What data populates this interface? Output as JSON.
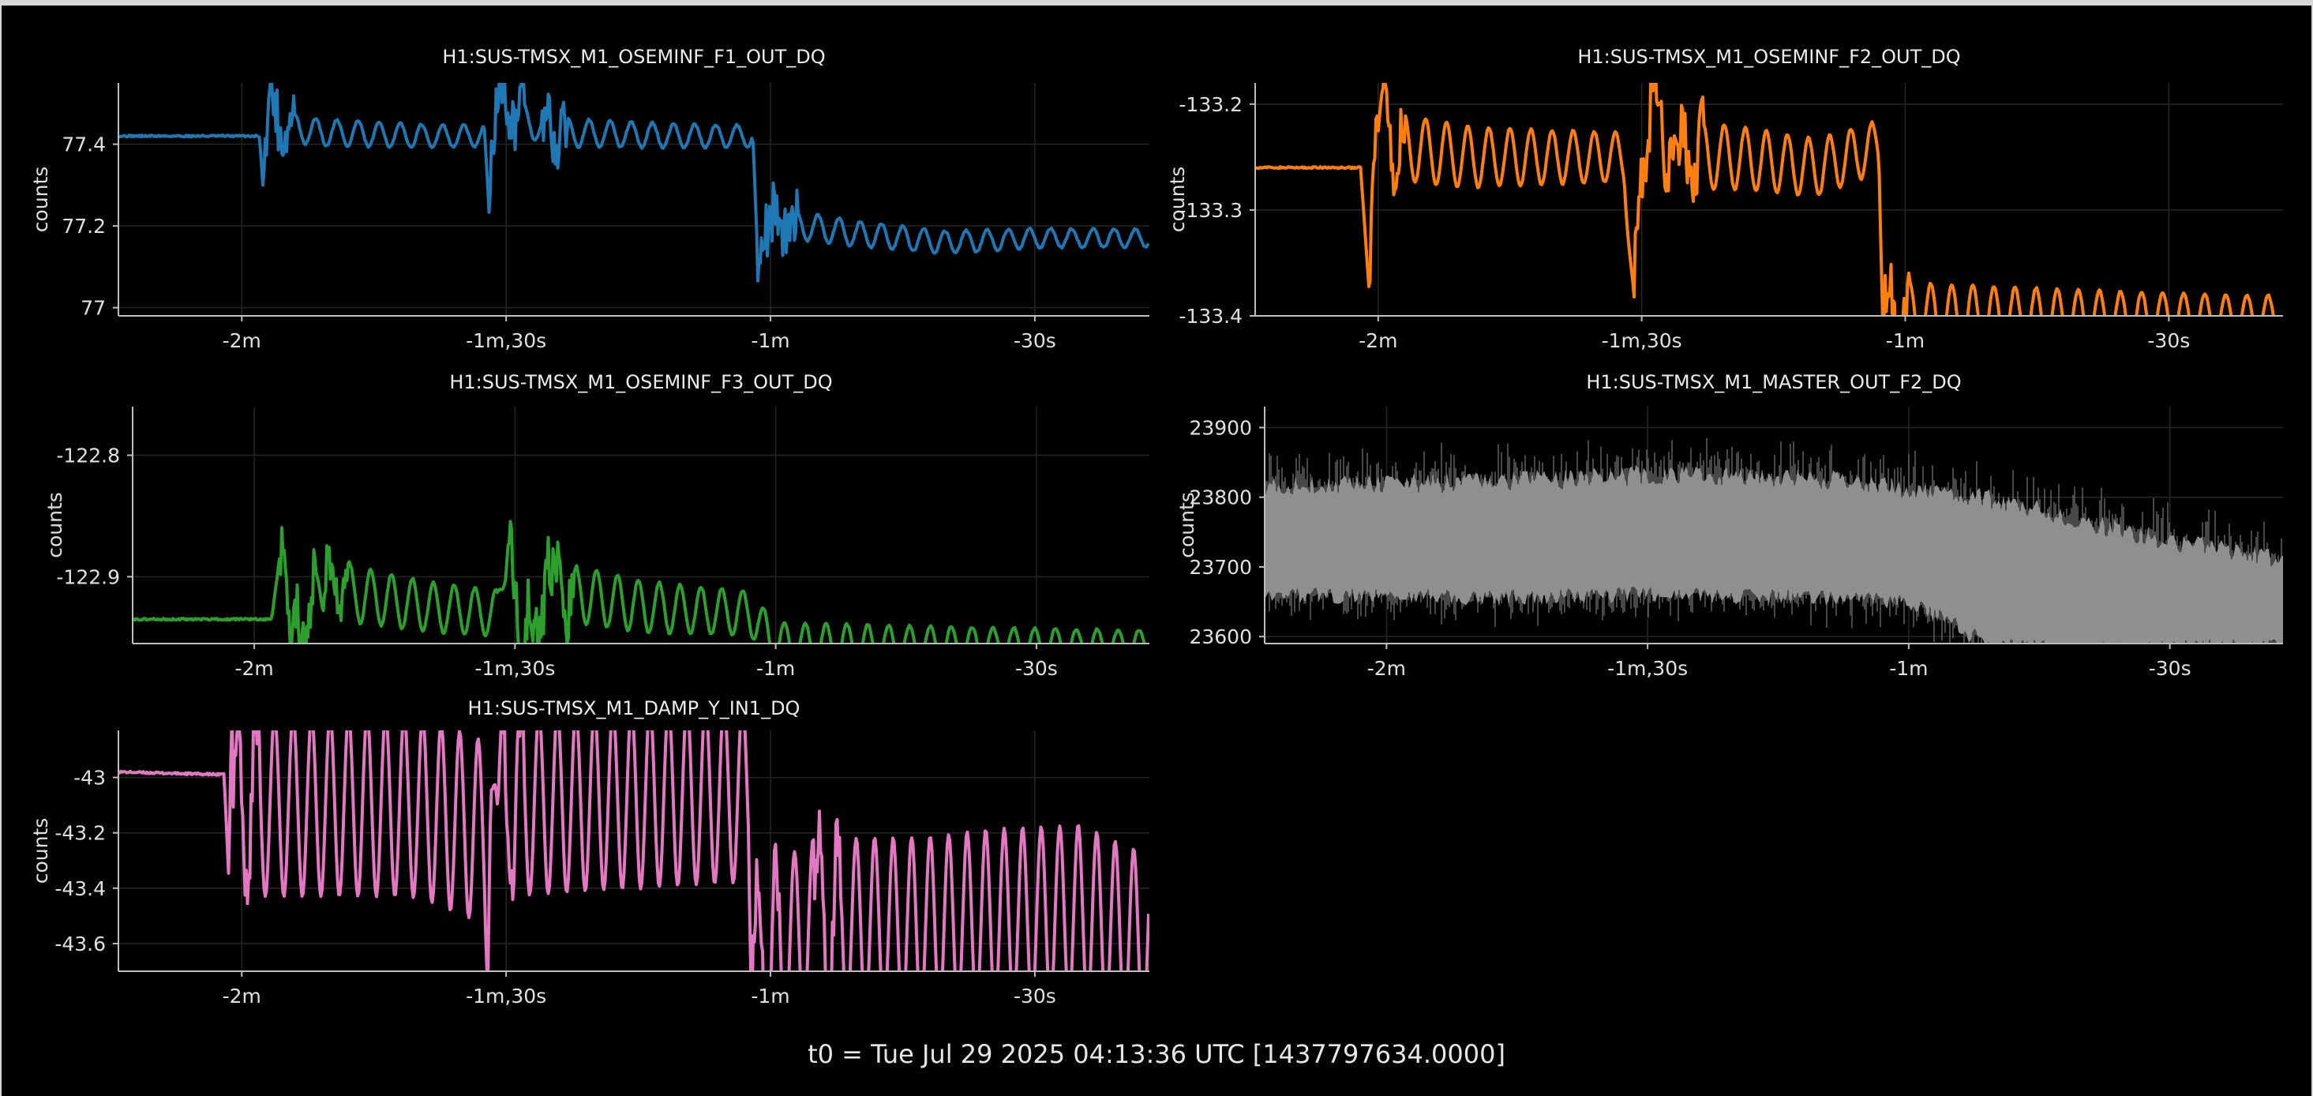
{
  "footer": "t0 = Tue Jul 29 2025 04:13:36 UTC [1437797634.0000]",
  "chart_data": [
    {
      "type": "line",
      "title": "H1:SUS-TMSX_M1_OSEMINF_F1_OUT_DQ",
      "ylabel": "counts",
      "color": "#1f77b4",
      "x_unit": "s",
      "xlim": [
        -134,
        -17
      ],
      "ylim": [
        76.98,
        77.55
      ],
      "xticks": [
        {
          "v": -120,
          "label": "-2m"
        },
        {
          "v": -90,
          "label": "-1m,30s"
        },
        {
          "v": -60,
          "label": "-1m"
        },
        {
          "v": -30,
          "label": "-30s"
        }
      ],
      "yticks": [
        {
          "v": 77,
          "label": "77"
        },
        {
          "v": 77.2,
          "label": "77.2"
        },
        {
          "v": 77.4,
          "label": "77.4"
        }
      ],
      "x": [
        -134,
        -118,
        -117.5,
        -117,
        -116,
        -112,
        -100,
        -92.5,
        -92,
        -91,
        -86,
        -70,
        -62,
        -61.5,
        -60,
        -50,
        -40,
        -30,
        -20,
        -17
      ],
      "y": [
        77.42,
        77.42,
        77.27,
        77.52,
        77.45,
        77.43,
        77.42,
        77.42,
        77.25,
        77.52,
        77.43,
        77.42,
        77.42,
        77.12,
        77.21,
        77.18,
        77.16,
        77.17,
        77.17,
        77.17
      ]
    },
    {
      "type": "line",
      "title": "H1:SUS-TMSX_M1_OSEMINF_F2_OUT_DQ",
      "ylabel": "counts",
      "color": "#ff7f0e",
      "x_unit": "s",
      "xlim": [
        -134,
        -17
      ],
      "ylim": [
        -133.4,
        -133.18
      ],
      "xticks": [
        {
          "v": -120,
          "label": "-2m"
        },
        {
          "v": -90,
          "label": "-1m,30s"
        },
        {
          "v": -60,
          "label": "-1m"
        },
        {
          "v": -30,
          "label": "-30s"
        }
      ],
      "yticks": [
        {
          "v": -133.4,
          "label": "-133.4"
        },
        {
          "v": -133.3,
          "label": "-133.3"
        },
        {
          "v": -133.2,
          "label": "-133.2"
        }
      ],
      "x": [
        -134,
        -122,
        -121,
        -120,
        -118,
        -110,
        -100,
        -92,
        -91,
        -89,
        -86,
        -80,
        -70,
        -63,
        -62.5
      ],
      "y": [
        -133.26,
        -133.26,
        -133.38,
        -133.22,
        -133.24,
        -133.25,
        -133.25,
        -133.25,
        -133.38,
        -133.2,
        -133.25,
        -133.25,
        -133.26,
        -133.24,
        -133.4
      ]
    },
    {
      "type": "line",
      "title": "H1:SUS-TMSX_M1_OSEMINF_F3_OUT_DQ",
      "ylabel": "counts",
      "color": "#2ca02c",
      "x_unit": "s",
      "xlim": [
        -134,
        -17
      ],
      "ylim": [
        -122.955,
        -122.76
      ],
      "xticks": [
        {
          "v": -120,
          "label": "-2m"
        },
        {
          "v": -90,
          "label": "-1m,30s"
        },
        {
          "v": -60,
          "label": "-1m"
        },
        {
          "v": -30,
          "label": "-30s"
        }
      ],
      "yticks": [
        {
          "v": -122.9,
          "label": "-122.9"
        },
        {
          "v": -122.8,
          "label": "-122.8"
        }
      ],
      "x": [
        -134,
        -118,
        -117,
        -116,
        -112,
        -100,
        -92,
        -91,
        -89,
        -86,
        -75,
        -63,
        -60,
        -55,
        -50
      ],
      "y": [
        -122.935,
        -122.935,
        -122.88,
        -122.955,
        -122.91,
        -122.925,
        -122.93,
        -122.88,
        -122.955,
        -122.91,
        -122.925,
        -122.93,
        -122.955,
        -122.955,
        -122.955
      ]
    },
    {
      "type": "line",
      "title": "H1:SUS-TMSX_M1_MASTER_OUT_F2_DQ",
      "ylabel": "counts",
      "color": "#8f8f8f",
      "x_unit": "s",
      "xlim": [
        -134,
        -17
      ],
      "ylim": [
        23590,
        23930
      ],
      "xticks": [
        {
          "v": -120,
          "label": "-2m"
        },
        {
          "v": -90,
          "label": "-1m,30s"
        },
        {
          "v": -60,
          "label": "-1m"
        },
        {
          "v": -30,
          "label": "-30s"
        }
      ],
      "yticks": [
        {
          "v": 23600,
          "label": "23600"
        },
        {
          "v": 23700,
          "label": "23700"
        },
        {
          "v": 23800,
          "label": "23800"
        },
        {
          "v": 23900,
          "label": "23900"
        }
      ],
      "x": [
        -134,
        -110,
        -90,
        -70,
        -60,
        -50,
        -40,
        -30,
        -20,
        -17
      ],
      "y_upper": [
        23810,
        23815,
        23825,
        23820,
        23805,
        23790,
        23760,
        23730,
        23710,
        23700
      ],
      "y_lower": [
        23665,
        23660,
        23665,
        23660,
        23655,
        23590,
        23590,
        23590,
        23590,
        23590
      ]
    },
    {
      "type": "line",
      "title": "H1:SUS-TMSX_M1_DAMP_Y_IN1_DQ",
      "ylabel": "counts",
      "color": "#e377c2",
      "x_unit": "s",
      "xlim": [
        -134,
        -17
      ],
      "ylim": [
        -43.7,
        -42.83
      ],
      "xticks": [
        {
          "v": -120,
          "label": "-2m"
        },
        {
          "v": -90,
          "label": "-1m,30s"
        },
        {
          "v": -60,
          "label": "-1m"
        },
        {
          "v": -30,
          "label": "-30s"
        }
      ],
      "yticks": [
        {
          "v": -43.6,
          "label": "-43.6"
        },
        {
          "v": -43.4,
          "label": "-43.4"
        },
        {
          "v": -43.2,
          "label": "-43.2"
        },
        {
          "v": -43,
          "label": "-43"
        }
      ],
      "x": [
        -134,
        -122,
        -121.5,
        -121,
        -110,
        -100,
        -92.5,
        -92,
        -91,
        -80,
        -65,
        -62.5,
        -62,
        -55,
        -45,
        -35,
        -25,
        -18
      ],
      "y": [
        -42.98,
        -42.99,
        -43.35,
        -43.1,
        -43.1,
        -43.1,
        -43.2,
        -43.46,
        -43.1,
        -43.08,
        -43.05,
        -43.05,
        -43.7,
        -43.55,
        -43.55,
        -43.52,
        -43.5,
        -43.6
      ]
    }
  ]
}
